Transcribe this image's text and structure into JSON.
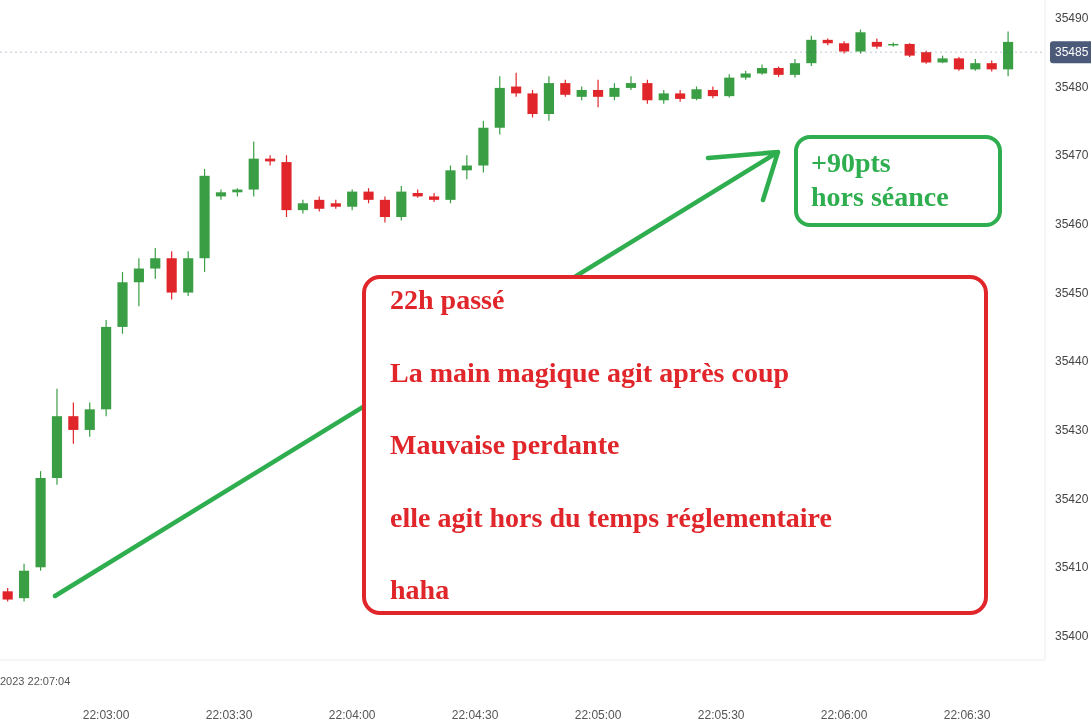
{
  "chart_data": {
    "type": "candlestick",
    "x": [
      22.04333,
      22.04444,
      22.04556,
      22.04667,
      22.04778,
      22.04889,
      22.05,
      22.05111,
      22.05222,
      22.05333,
      22.05444,
      22.05556,
      22.05667,
      22.05778,
      22.05889,
      22.06,
      22.06111,
      22.06222,
      22.06333,
      22.06444,
      22.06556,
      22.06667,
      22.06778,
      22.06889,
      22.07,
      22.07111,
      22.07222,
      22.07333,
      22.07444,
      22.07556,
      22.07667,
      22.07778,
      22.07889,
      22.08,
      22.08111,
      22.08222,
      22.08333,
      22.08444,
      22.08556,
      22.08667,
      22.08778,
      22.08889,
      22.09,
      22.09111,
      22.09222,
      22.09333,
      22.09444,
      22.09556,
      22.09667,
      22.09778,
      22.09889,
      22.1,
      22.10111,
      22.10222,
      22.10333,
      22.10444,
      22.10556,
      22.10667,
      22.10778,
      22.10889,
      22.11,
      22.11111
    ],
    "ohlc": [
      [
        35406.5,
        35407,
        35405,
        35405.3
      ],
      [
        35405.5,
        35410.5,
        35405,
        35409.5
      ],
      [
        35410,
        35424,
        35409.5,
        35423
      ],
      [
        35423,
        35436,
        35422,
        35432
      ],
      [
        35432,
        35434,
        35428,
        35430
      ],
      [
        35430,
        35434,
        35429,
        35433
      ],
      [
        35433,
        35446,
        35432,
        35445
      ],
      [
        35445,
        35453,
        35444,
        35451.5
      ],
      [
        35451.5,
        35455,
        35448,
        35453.5
      ],
      [
        35453.5,
        35456.5,
        35452,
        35455
      ],
      [
        35455,
        35456,
        35449,
        35450
      ],
      [
        35450,
        35456,
        35449.5,
        35455
      ],
      [
        35455,
        35468,
        35453,
        35467
      ],
      [
        35464,
        35465,
        35463.5,
        35464.6
      ],
      [
        35464.6,
        35465.2,
        35464,
        35465
      ],
      [
        35465,
        35472,
        35464,
        35469.5
      ],
      [
        35469.5,
        35470,
        35468.5,
        35469.1
      ],
      [
        35469,
        35470,
        35461,
        35462
      ],
      [
        35462,
        35463.5,
        35461.5,
        35463
      ],
      [
        35463.5,
        35464,
        35461.8,
        35462.2
      ],
      [
        35463,
        35463.5,
        35462.2,
        35462.5
      ],
      [
        35462.5,
        35465,
        35462,
        35464.7
      ],
      [
        35464.7,
        35465.2,
        35463,
        35463.5
      ],
      [
        35463.5,
        35464,
        35460.2,
        35461
      ],
      [
        35461,
        35465.5,
        35460.5,
        35464.7
      ],
      [
        35464.5,
        35465,
        35463.8,
        35464
      ],
      [
        35464,
        35464.5,
        35463.2,
        35463.5
      ],
      [
        35463.5,
        35468.5,
        35463,
        35467.8
      ],
      [
        35467.8,
        35470,
        35466.5,
        35468.5
      ],
      [
        35468.5,
        35475,
        35467.5,
        35474
      ],
      [
        35474,
        35481.5,
        35473,
        35479.8
      ],
      [
        35480,
        35482,
        35478.5,
        35479
      ],
      [
        35479,
        35479.5,
        35475.5,
        35476
      ],
      [
        35476,
        35481.5,
        35475,
        35480.5
      ],
      [
        35480.5,
        35481,
        35478.5,
        35478.8
      ],
      [
        35478.5,
        35480,
        35478,
        35479.5
      ],
      [
        35479.5,
        35481,
        35477,
        35478.5
      ],
      [
        35478.5,
        35480.5,
        35478,
        35479.8
      ],
      [
        35479.8,
        35481.5,
        35479.5,
        35480.5
      ],
      [
        35480.5,
        35481,
        35477.5,
        35478
      ],
      [
        35478,
        35479.5,
        35477.5,
        35479
      ],
      [
        35479,
        35479.5,
        35477.8,
        35478.2
      ],
      [
        35478.2,
        35480,
        35478,
        35479.6
      ],
      [
        35479.5,
        35480,
        35478.3,
        35478.6
      ],
      [
        35478.6,
        35481.8,
        35478.4,
        35481.3
      ],
      [
        35481.3,
        35482.3,
        35481,
        35481.9
      ],
      [
        35481.9,
        35483.2,
        35481.7,
        35482.7
      ],
      [
        35482.7,
        35482.9,
        35481.4,
        35481.7
      ],
      [
        35481.7,
        35484,
        35481.3,
        35483.4
      ],
      [
        35483.4,
        35487.4,
        35483,
        35486.8
      ],
      [
        35486.8,
        35487,
        35486,
        35486.3
      ],
      [
        35486.3,
        35486.6,
        35484.8,
        35485.1
      ],
      [
        35485.1,
        35488.3,
        35484.8,
        35487.9
      ],
      [
        35486.5,
        35487,
        35485.5,
        35485.8
      ],
      [
        35486,
        35486.4,
        35485.8,
        35486.2
      ],
      [
        35486.2,
        35486.3,
        35484.3,
        35484.5
      ],
      [
        35485,
        35485.2,
        35483.3,
        35483.5
      ],
      [
        35483.5,
        35484.5,
        35483.4,
        35484.1
      ],
      [
        35484.1,
        35484.3,
        35482.3,
        35482.5
      ],
      [
        35482.5,
        35484,
        35482.3,
        35483.4
      ],
      [
        35483.4,
        35483.8,
        35482.2,
        35482.5
      ],
      [
        35482.5,
        35488,
        35481.5,
        35486.5
      ]
    ],
    "xlim": [
      22.04281,
      22.11361
    ],
    "xticks": [
      {
        "value": 22.05,
        "label": "22:03:00"
      },
      {
        "value": 22.05833,
        "label": "22:03:30"
      },
      {
        "value": 22.06667,
        "label": "22:04:00"
      },
      {
        "value": 22.075,
        "label": "22:04:30"
      },
      {
        "value": 22.08333,
        "label": "22:05:00"
      },
      {
        "value": 22.09167,
        "label": "22:05:30"
      },
      {
        "value": 22.1,
        "label": "22:06:00"
      },
      {
        "value": 22.10833,
        "label": "22:06:30"
      }
    ],
    "ylim": [
      35396.5,
      35492.6
    ],
    "yticks": [
      35400,
      35410,
      35420,
      35430,
      35440,
      35450,
      35460,
      35470,
      35480,
      35490
    ],
    "ref_lines": [
      {
        "axis": "y",
        "value": 35485,
        "label": "35485",
        "color": "#4a5a78"
      }
    ],
    "annotations": [
      "+90pts\nhors séance",
      "22h passé\nLa main magique agit après coup\nMauvaise perdante\nelle agit hors du temps réglementaire\nhaha",
      "2023 22:07:04"
    ]
  }
}
